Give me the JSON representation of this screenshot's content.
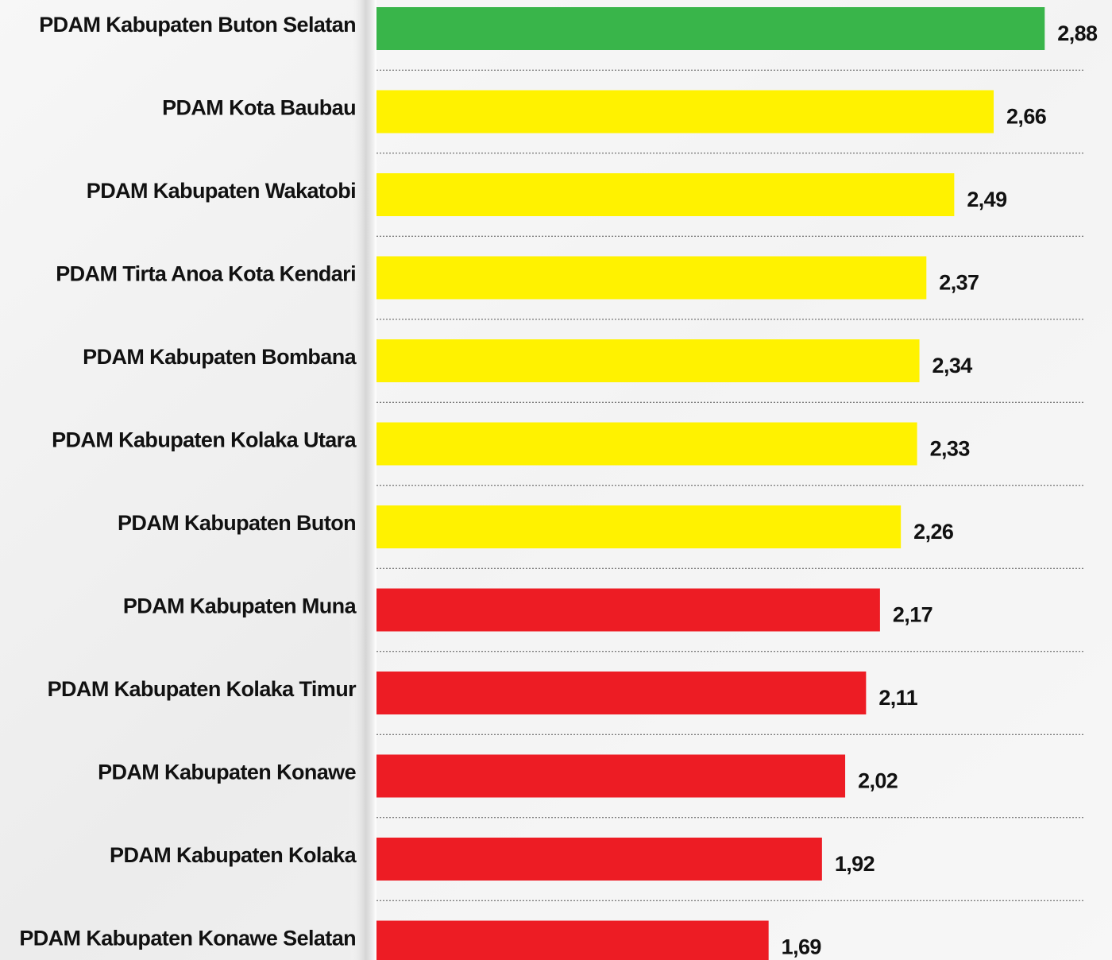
{
  "chart_data": {
    "type": "hbar",
    "categories": [
      "PDAM Kabupaten Buton Selatan",
      "PDAM Kota Baubau",
      "PDAM Kabupaten Wakatobi",
      "PDAM Tirta Anoa Kota Kendari",
      "PDAM Kabupaten Bombana",
      "PDAM Kabupaten Kolaka Utara",
      "PDAM Kabupaten Buton",
      "PDAM Kabupaten Muna",
      "PDAM Kabupaten Kolaka Timur",
      "PDAM Kabupaten Konawe",
      "PDAM Kabupaten Kolaka",
      "PDAM Kabupaten Konawe Selatan"
    ],
    "values": [
      2.88,
      2.66,
      2.49,
      2.37,
      2.34,
      2.33,
      2.26,
      2.17,
      2.11,
      2.02,
      1.92,
      1.69
    ],
    "value_labels": [
      "2,88",
      "2,66",
      "2,49",
      "2,37",
      "2,34",
      "2,33",
      "2,26",
      "2,17",
      "2,11",
      "2,02",
      "1,92",
      "1,69"
    ],
    "colors": [
      "#39b54a",
      "#fff200",
      "#fff200",
      "#fff200",
      "#fff200",
      "#fff200",
      "#fff200",
      "#ed1c24",
      "#ed1c24",
      "#ed1c24",
      "#ed1c24",
      "#ed1c24"
    ],
    "xlim": [
      0,
      3.17
    ]
  }
}
